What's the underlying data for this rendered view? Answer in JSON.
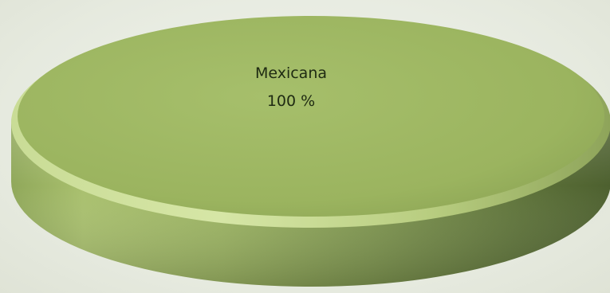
{
  "chart_data": {
    "type": "pie",
    "title": "",
    "slices": [
      {
        "label": "Mexicana",
        "value": 100,
        "value_label": "100 %",
        "color": "#9bb55f"
      }
    ],
    "legend": "none",
    "style": "3d"
  }
}
